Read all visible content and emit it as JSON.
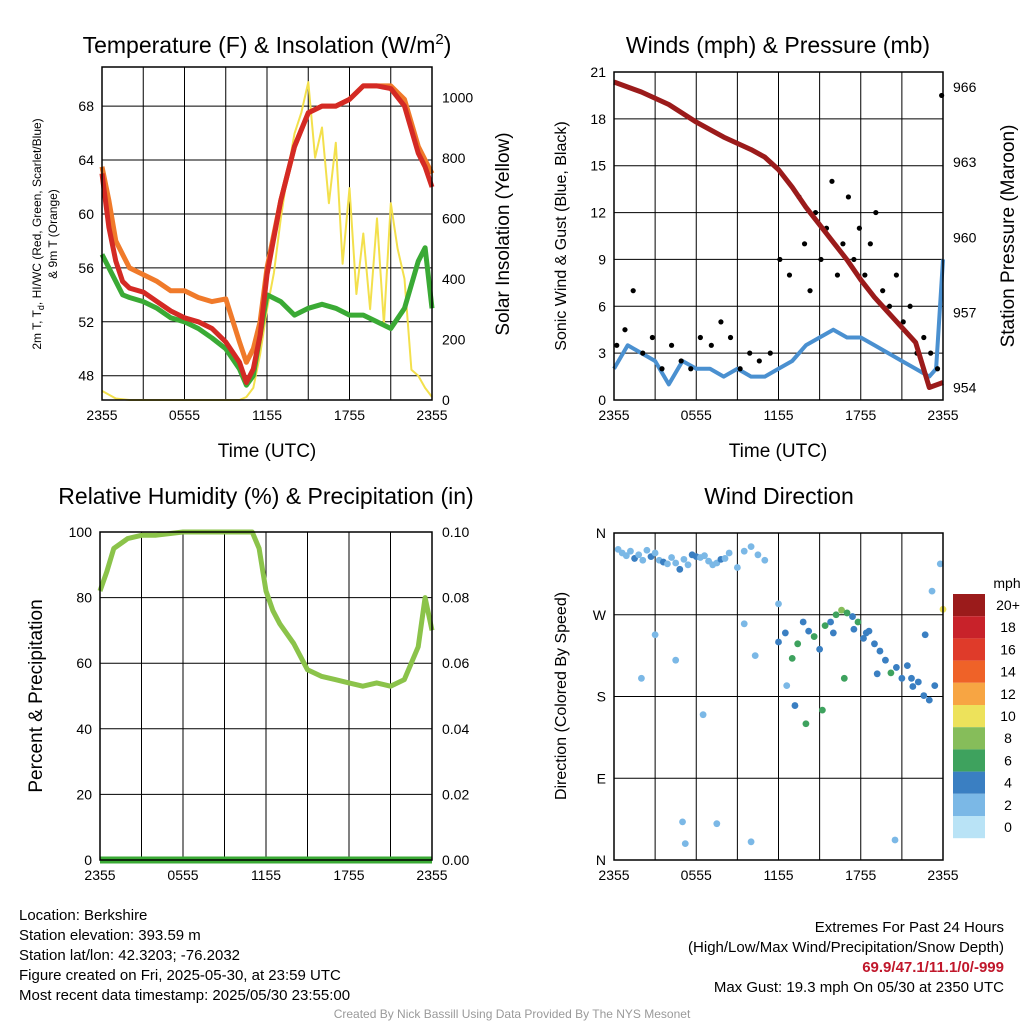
{
  "chart_data": [
    {
      "type": "line",
      "title": "Temperature (F) & Insolation (W/m",
      "title_superscript": "2",
      "title_end": ")",
      "xlabel": "Time (UTC)",
      "ylabel_left_line1": "2m T, T",
      "ylabel_left_line1_sub": "d",
      "ylabel_left_line1_end": ", HI/WC (Red, Green, Scarlet/Blue)",
      "ylabel_left_line2": "& 9m T (Orange)",
      "ylabel_right": "Solar Insolation (Yellow)",
      "x_ticks": [
        "2355",
        "0555",
        "1155",
        "1755",
        "2355"
      ],
      "y_ticks_left": [
        "48",
        "52",
        "56",
        "60",
        "64",
        "68"
      ],
      "y_ticks_right": [
        "0",
        "200",
        "400",
        "600",
        "800",
        "1000"
      ],
      "ylim_left": [
        46.2,
        70.9
      ],
      "ylim_right": [
        0,
        1100
      ],
      "xlim_hours": [
        0,
        24
      ],
      "series": [
        {
          "color": "#f07a2a",
          "x": [
            0,
            0.5,
            1,
            1.5,
            2,
            3,
            4,
            5,
            6,
            7,
            8,
            9,
            10,
            10.5,
            11,
            11.5,
            12,
            13,
            14,
            15,
            16,
            17,
            18,
            19,
            20,
            21,
            22,
            23,
            23.5,
            24
          ],
          "values": [
            63.5,
            61,
            58,
            57,
            56,
            55.5,
            55,
            54.3,
            54.3,
            53.8,
            53.5,
            53.7,
            50.5,
            49,
            50,
            52,
            56,
            61,
            65,
            67.5,
            68,
            68,
            68.5,
            69.5,
            69.5,
            69.5,
            68.5,
            65,
            64,
            63
          ]
        },
        {
          "color": "#d42a24",
          "x": [
            0,
            0.5,
            1,
            1.5,
            2,
            3,
            4,
            5,
            6,
            7,
            8,
            9,
            10,
            10.5,
            11,
            11.5,
            12,
            13,
            14,
            15,
            16,
            17,
            18,
            19,
            20,
            21,
            22,
            23,
            23.5,
            24
          ],
          "values": [
            63,
            59,
            56.5,
            55,
            54.5,
            54.2,
            53.5,
            52.8,
            52.3,
            52,
            51.5,
            50.5,
            49,
            47.5,
            48.5,
            51,
            55.5,
            61,
            65,
            67.5,
            68,
            68,
            68.5,
            69.5,
            69.5,
            69.3,
            68,
            64.5,
            63.5,
            62
          ]
        },
        {
          "color": "#3aaa35",
          "x": [
            0,
            0.5,
            1,
            1.5,
            2,
            3,
            4,
            5,
            6,
            7,
            8,
            9,
            10,
            10.5,
            11,
            11.5,
            12,
            13,
            14,
            15,
            16,
            17,
            18,
            19,
            20,
            21,
            22,
            23,
            23.5,
            24
          ],
          "values": [
            57,
            56,
            55,
            54,
            53.8,
            53.5,
            53,
            52.3,
            52,
            51.5,
            50.8,
            50,
            48.5,
            47.3,
            48,
            51,
            54,
            53.5,
            52.5,
            53,
            53.3,
            53,
            52.5,
            52.5,
            52,
            51.5,
            53,
            56.5,
            57.5,
            53
          ]
        },
        {
          "color": "#f3e04c",
          "axis": "right",
          "x": [
            0,
            1,
            2,
            3,
            4,
            5,
            6,
            7,
            8,
            9,
            10,
            10.5,
            11,
            11.5,
            12,
            12.5,
            13,
            13.5,
            14,
            14.5,
            15,
            15.5,
            16,
            16.5,
            17,
            17.5,
            18,
            18.5,
            19,
            19.5,
            20,
            20.5,
            21,
            21.5,
            22,
            22.5,
            23,
            23.5,
            24
          ],
          "values": [
            30,
            5,
            0,
            0,
            0,
            0,
            0,
            0,
            0,
            0,
            0,
            10,
            40,
            150,
            300,
            420,
            600,
            750,
            880,
            950,
            1050,
            800,
            900,
            650,
            850,
            450,
            700,
            350,
            550,
            300,
            600,
            250,
            650,
            500,
            400,
            100,
            80,
            40,
            10
          ]
        }
      ]
    },
    {
      "type": "scatter",
      "title": "Winds (mph) & Pressure (mb)",
      "xlabel": "Time (UTC)",
      "ylabel_left": "Sonic Wind & Gust (Blue, Black)",
      "ylabel_right": "Station Pressure (Maroon)",
      "x_ticks": [
        "2355",
        "0555",
        "1155",
        "1755",
        "2355"
      ],
      "y_ticks_left": [
        "0",
        "3",
        "6",
        "9",
        "12",
        "15",
        "18",
        "21"
      ],
      "y_ticks_right": [
        "954",
        "957",
        "960",
        "963",
        "966"
      ],
      "ylim_left": [
        0,
        21
      ],
      "ylim_right": [
        953.5,
        966.6
      ],
      "xlim_hours": [
        0,
        24
      ],
      "wind": {
        "color": "#4a90d0",
        "x": [
          0,
          1,
          2,
          3,
          4,
          5,
          6,
          7,
          8,
          9,
          10,
          11,
          12,
          13,
          14,
          15,
          16,
          17,
          18,
          19,
          20,
          21,
          22,
          23,
          23.5,
          24
        ],
        "values": [
          2,
          3.5,
          3,
          2.5,
          1,
          2.5,
          2,
          2,
          1.5,
          2,
          1.5,
          1.5,
          2,
          2.5,
          3.5,
          4,
          4.5,
          4,
          4,
          3.5,
          3,
          2.5,
          2,
          1.5,
          2,
          9
        ]
      },
      "gust": {
        "color": "#000000",
        "x": [
          0.2,
          0.8,
          1.4,
          2.1,
          2.8,
          3.5,
          4.2,
          4.9,
          5.6,
          6.3,
          7.1,
          7.8,
          8.5,
          9.2,
          9.9,
          10.6,
          11.4,
          12.1,
          12.8,
          13.5,
          13.9,
          14.3,
          14.7,
          15.1,
          15.5,
          15.9,
          16.3,
          16.7,
          17.1,
          17.5,
          17.9,
          18.3,
          18.7,
          19.1,
          19.6,
          20.1,
          20.6,
          21.1,
          21.6,
          22.1,
          22.6,
          23.1,
          23.6,
          23.9
        ],
        "values": [
          3.5,
          4.5,
          7,
          3,
          4,
          2,
          3.5,
          2.5,
          2,
          4,
          3.5,
          5,
          4,
          2,
          3,
          2.5,
          3,
          9,
          8,
          13,
          10,
          7,
          12,
          9,
          11,
          14,
          8,
          10,
          13,
          9,
          11,
          8,
          10,
          12,
          7,
          6,
          8,
          5,
          6,
          3,
          4,
          3,
          2,
          19.5
        ]
      },
      "pressure": {
        "color": "#9b1b1b",
        "x": [
          0,
          2,
          4,
          6,
          8,
          10,
          11,
          12,
          13,
          14,
          15,
          16,
          17,
          18,
          19,
          20,
          21,
          22,
          23,
          24
        ],
        "values": [
          966.2,
          965.8,
          965.3,
          964.6,
          964,
          963.5,
          963.2,
          962.7,
          962,
          961.2,
          960.5,
          959.8,
          959.1,
          958.3,
          957.6,
          957,
          956.4,
          955.8,
          954,
          954.2
        ]
      }
    },
    {
      "type": "line",
      "title": "Relative Humidity (%) & Precipitation (in)",
      "ylabel_left": "Percent & Precipitation",
      "x_ticks": [
        "2355",
        "0555",
        "1155",
        "1755",
        "2355"
      ],
      "y_ticks_left": [
        "0",
        "20",
        "40",
        "60",
        "80",
        "100"
      ],
      "y_ticks_right": [
        "0.00",
        "0.02",
        "0.04",
        "0.06",
        "0.08",
        "0.10"
      ],
      "ylim_left": [
        0,
        100
      ],
      "ylim_right": [
        0,
        0.1
      ],
      "xlim_hours": [
        0,
        24
      ],
      "series": [
        {
          "color": "#8bc34a",
          "x": [
            0,
            0.5,
            1,
            2,
            3,
            4,
            5,
            6,
            7,
            8,
            9,
            10,
            11,
            11.5,
            12,
            12.5,
            13,
            14,
            15,
            16,
            17,
            18,
            19,
            20,
            21,
            22,
            23,
            23.5,
            24
          ],
          "values": [
            82,
            88,
            95,
            98,
            99,
            99,
            99.5,
            100,
            100,
            100,
            100,
            100,
            100,
            95,
            82,
            76,
            72,
            66,
            58,
            56,
            55,
            54,
            53,
            54,
            53,
            55,
            65,
            80,
            70
          ]
        },
        {
          "color": "#3aaa35",
          "x": [
            0,
            24
          ],
          "values": [
            0,
            0
          ]
        }
      ]
    },
    {
      "type": "scatter",
      "title": "Wind Direction",
      "ylabel_left": "Direction (Colored By Speed)",
      "x_ticks": [
        "2355",
        "0555",
        "1155",
        "1755",
        "2355"
      ],
      "y_ticks_left": [
        "N",
        "E",
        "S",
        "W",
        "N"
      ],
      "ylim_left": [
        0,
        360
      ],
      "xlim_hours": [
        0,
        24
      ],
      "legend_title": "mph",
      "legend_labels": [
        "20+",
        "18",
        "16",
        "14",
        "12",
        "10",
        "8",
        "6",
        "4",
        "2",
        "0"
      ],
      "legend_colors": [
        "#9b1b1b",
        "#c8222a",
        "#df3b2a",
        "#ef6228",
        "#f7a543",
        "#ede25b",
        "#86bd5a",
        "#3ea25e",
        "#3a7fc2",
        "#7bb8e6",
        "#b9e3f6"
      ],
      "x": [
        0.3,
        0.6,
        0.9,
        1.2,
        1.5,
        1.8,
        2.1,
        2.4,
        2.7,
        3.0,
        3.3,
        3.6,
        3.9,
        4.2,
        4.5,
        4.8,
        5.1,
        5.4,
        5.7,
        6.0,
        6.3,
        6.6,
        6.9,
        7.2,
        7.5,
        7.8,
        8.1,
        8.4,
        9.0,
        9.5,
        10.0,
        10.5,
        11.0,
        12.0,
        12.5,
        13.0,
        13.4,
        13.8,
        14.2,
        14.6,
        15.0,
        15.4,
        15.8,
        16.2,
        16.6,
        17.0,
        17.4,
        17.8,
        18.2,
        18.6,
        19.0,
        19.4,
        19.8,
        20.2,
        20.6,
        21.0,
        21.4,
        21.8,
        22.2,
        22.6,
        23.0,
        23.4,
        23.8,
        24.0,
        2.0,
        3.0,
        4.5,
        5.0,
        5.2,
        6.5,
        7.5,
        9.5,
        10.0,
        10.3,
        12.0,
        12.6,
        13.2,
        14.0,
        15.2,
        16.0,
        16.8,
        17.5,
        18.4,
        19.2,
        20.5,
        21.7,
        22.7,
        23.2
      ],
      "values": [
        342,
        338,
        335,
        340,
        332,
        336,
        330,
        341,
        334,
        338,
        330,
        328,
        326,
        333,
        327,
        320,
        331,
        325,
        336,
        334,
        333,
        335,
        329,
        325,
        327,
        331,
        332,
        338,
        322,
        340,
        345,
        336,
        330,
        240,
        250,
        222,
        238,
        262,
        252,
        246,
        232,
        258,
        262,
        270,
        275,
        272,
        268,
        262,
        244,
        252,
        238,
        230,
        220,
        206,
        212,
        200,
        214,
        191,
        196,
        181,
        176,
        192,
        326,
        276,
        200,
        248,
        220,
        42,
        18,
        160,
        40,
        260,
        20,
        225,
        282,
        192,
        170,
        150,
        165,
        250,
        200,
        254,
        250,
        205,
        22,
        200,
        248,
        296
      ],
      "speeds": [
        1,
        1,
        2,
        2,
        3,
        1,
        2,
        2,
        3,
        1,
        2,
        3,
        1,
        2,
        2,
        3,
        1,
        2,
        3,
        3,
        2,
        1,
        2,
        1,
        2,
        3,
        1,
        2,
        1,
        1,
        1,
        2,
        1,
        3,
        4,
        5,
        6,
        4,
        4,
        6,
        4,
        5,
        4,
        5,
        7,
        6,
        4,
        5,
        4,
        4,
        3,
        4,
        4,
        5,
        4,
        4,
        4,
        4,
        3,
        4,
        4,
        4,
        1,
        9,
        1,
        1,
        1,
        1,
        1,
        1,
        1,
        1,
        1,
        1,
        1,
        2,
        4,
        5,
        6,
        4,
        5,
        4,
        3,
        4,
        1,
        3,
        4,
        1
      ]
    }
  ],
  "footer": {
    "location": "Location: Berkshire",
    "elevation": "Station elevation: 393.59 m",
    "latlon": "Station lat/lon: 42.3203; -76.2032",
    "created": "Figure created on Fri, 2025-05-30, at 23:59 UTC",
    "recent": "Most recent data timestamp: 2025/05/30 23:55:00",
    "extremes_title": "Extremes For Past 24 Hours",
    "extremes_subtitle": "(High/Low/Max Wind/Precipitation/Snow Depth)",
    "extremes_values": "69.9/47.1/11.1/0/-999",
    "max_gust": "Max Gust: 19.3 mph On 05/30 at 2350 UTC",
    "credit": "Created By Nick Bassill Using Data Provided By The NYS Mesonet"
  }
}
